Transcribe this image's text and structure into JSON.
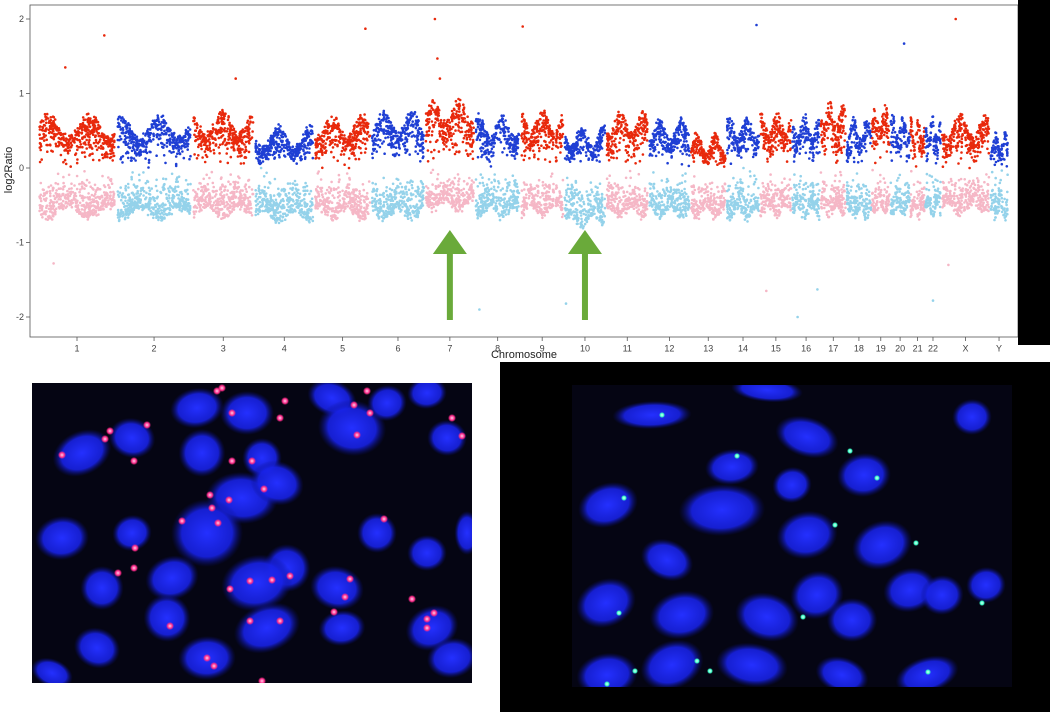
{
  "chart_data": {
    "type": "scatter",
    "title": "",
    "xlabel": "Chromosome",
    "ylabel": "log2Ratio",
    "ylim": [
      -2.1,
      2.1
    ],
    "yticks": [
      -2,
      -1,
      0,
      1,
      2
    ],
    "chromosomes": [
      "1",
      "2",
      "3",
      "4",
      "5",
      "6",
      "7",
      "8",
      "9",
      "10",
      "11",
      "12",
      "13",
      "14",
      "15",
      "16",
      "17",
      "18",
      "19",
      "20",
      "21",
      "22",
      "X",
      "Y"
    ],
    "chromosome_sizes": [
      248,
      242,
      198,
      190,
      181,
      171,
      159,
      145,
      138,
      134,
      135,
      133,
      114,
      107,
      102,
      90,
      83,
      80,
      59,
      64,
      47,
      51,
      156,
      57
    ],
    "positive_baseline": [
      0.55,
      0.55,
      0.6,
      0.4,
      0.55,
      0.6,
      0.75,
      0.55,
      0.62,
      0.42,
      0.6,
      0.5,
      0.3,
      0.55,
      0.6,
      0.55,
      0.72,
      0.5,
      0.7,
      0.55,
      0.5,
      0.55,
      0.55,
      0.35
    ],
    "negative_baseline": [
      -0.6,
      -0.62,
      -0.6,
      -0.65,
      -0.62,
      -0.62,
      -0.5,
      -0.6,
      -0.58,
      -0.72,
      -0.6,
      -0.6,
      -0.6,
      -0.62,
      -0.58,
      -0.6,
      -0.58,
      -0.6,
      -0.55,
      -0.58,
      -0.6,
      -0.58,
      -0.55,
      -0.62
    ],
    "colors": {
      "gain_odd": "#e8290c",
      "gain_even": "#1f3fd4",
      "loss_odd": "#f5b7c6",
      "loss_even": "#94d2ea"
    },
    "outliers": [
      {
        "chr": "1",
        "pos": 0.35,
        "y": 1.35
      },
      {
        "chr": "1",
        "pos": 0.85,
        "y": 1.78
      },
      {
        "chr": "3",
        "pos": 0.7,
        "y": 1.2
      },
      {
        "chr": "5",
        "pos": 0.9,
        "y": 1.87
      },
      {
        "chr": "7",
        "pos": 0.2,
        "y": 2.0
      },
      {
        "chr": "7",
        "pos": 0.25,
        "y": 1.47
      },
      {
        "chr": "7",
        "pos": 0.3,
        "y": 1.2
      },
      {
        "chr": "9",
        "pos": 0.05,
        "y": 1.9
      },
      {
        "chr": "14",
        "pos": 0.9,
        "y": 1.92
      },
      {
        "chr": "20",
        "pos": 0.7,
        "y": 1.67
      },
      {
        "chr": "X",
        "pos": 0.3,
        "y": 2.0
      },
      {
        "chr": "1",
        "pos": 0.2,
        "y": -1.28
      },
      {
        "chr": "8",
        "pos": 0.1,
        "y": -1.9
      },
      {
        "chr": "10",
        "pos": 0.05,
        "y": -1.82
      },
      {
        "chr": "15",
        "pos": 0.2,
        "y": -1.65
      },
      {
        "chr": "16",
        "pos": 0.2,
        "y": -2.0
      },
      {
        "chr": "16",
        "pos": 0.9,
        "y": -1.63
      },
      {
        "chr": "22",
        "pos": 0.5,
        "y": -1.78
      },
      {
        "chr": "X",
        "pos": 0.15,
        "y": -1.3
      }
    ],
    "annotations": [
      {
        "type": "arrow",
        "chr": "7",
        "color": "#6aaa3a"
      },
      {
        "type": "arrow",
        "chr": "10",
        "color": "#6aaa3a"
      }
    ],
    "grid": false,
    "legend": "none"
  },
  "fish_images": [
    {
      "signal_color": "#ff2a8a",
      "nucleus_color": "#1822e6",
      "background": "#050513"
    },
    {
      "signal_color": "#3cffc8",
      "nucleus_color": "#1822e6",
      "background": "#050513"
    }
  ]
}
